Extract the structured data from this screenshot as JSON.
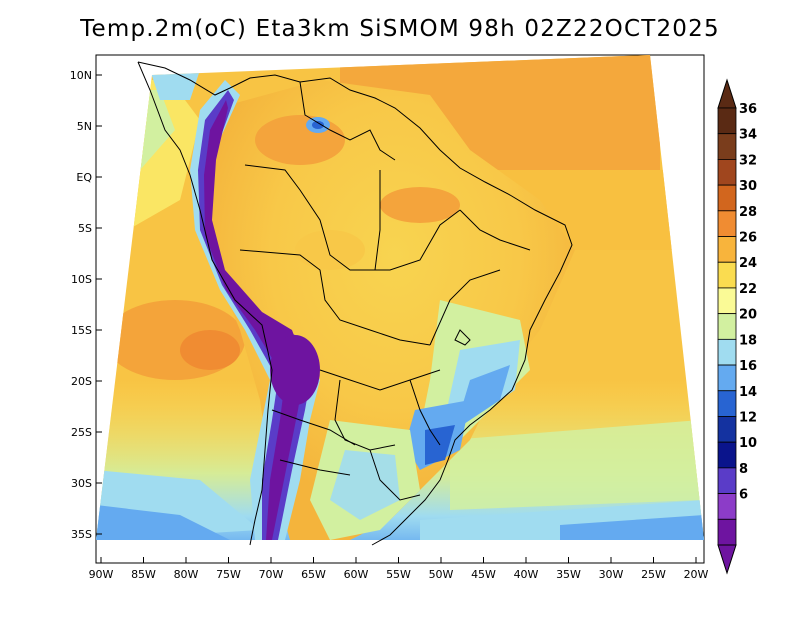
{
  "title": "Temp.2m(oC) Eta3km SiSMOM 98h 02Z22OCT2025",
  "latitude_labels": [
    "10N",
    "5N",
    "EQ",
    "5S",
    "10S",
    "15S",
    "20S",
    "25S",
    "30S",
    "35S"
  ],
  "longitude_labels": [
    "90W",
    "85W",
    "80W",
    "75W",
    "70W",
    "65W",
    "60W",
    "55W",
    "50W",
    "45W",
    "40W",
    "35W",
    "30W",
    "25W",
    "20W"
  ],
  "colorbar": {
    "labels": [
      "36",
      "34",
      "32",
      "30",
      "28",
      "26",
      "24",
      "22",
      "20",
      "18",
      "16",
      "14",
      "12",
      "10",
      "8",
      "6"
    ],
    "colors": [
      "#5a2a14",
      "#7a3d1c",
      "#a0461e",
      "#d2661e",
      "#f08c32",
      "#f8b43c",
      "#fadc50",
      "#fafa96",
      "#d2f0a0",
      "#a0dcf0",
      "#64aaf0",
      "#2864d2",
      "#1432a0",
      "#0a148c",
      "#5a3cc8",
      "#8c3cc8",
      "#6e14a0"
    ],
    "top_color": "#5a2a14",
    "bottom_color": "#6e14a0"
  }
}
